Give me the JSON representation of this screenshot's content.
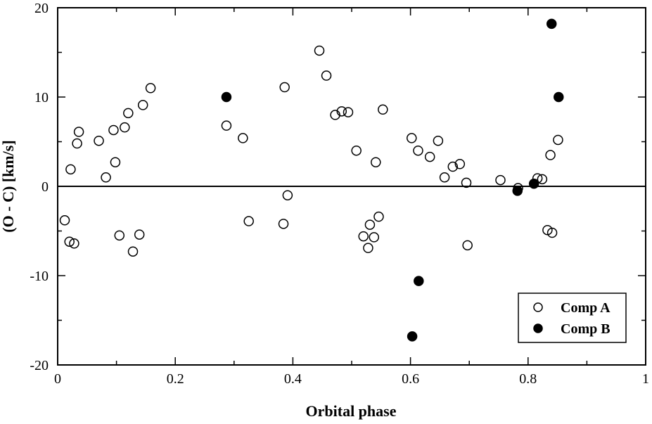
{
  "chart_data": {
    "type": "scatter",
    "xlabel": "Orbital phase",
    "ylabel": "(O - C) [km/s]",
    "xlim": [
      0,
      1
    ],
    "ylim": [
      -20,
      20
    ],
    "xticks": [
      "0",
      "0.2",
      "0.4",
      "0.6",
      "0.8",
      "1"
    ],
    "yticks": [
      "-20",
      "-10",
      "0",
      "10",
      "20"
    ],
    "zero_line": 0,
    "legend_position": "bottom-right",
    "series": [
      {
        "name": "Comp A",
        "marker": "open-circle",
        "points": [
          [
            0.012,
            -3.8
          ],
          [
            0.02,
            -6.2
          ],
          [
            0.022,
            1.9
          ],
          [
            0.028,
            -6.4
          ],
          [
            0.033,
            4.8
          ],
          [
            0.036,
            6.1
          ],
          [
            0.07,
            5.1
          ],
          [
            0.082,
            1.0
          ],
          [
            0.095,
            6.3
          ],
          [
            0.098,
            2.7
          ],
          [
            0.105,
            -5.5
          ],
          [
            0.114,
            6.6
          ],
          [
            0.12,
            8.2
          ],
          [
            0.128,
            -7.3
          ],
          [
            0.139,
            -5.4
          ],
          [
            0.145,
            9.1
          ],
          [
            0.158,
            11.0
          ],
          [
            0.287,
            6.8
          ],
          [
            0.315,
            5.4
          ],
          [
            0.325,
            -3.9
          ],
          [
            0.384,
            -4.2
          ],
          [
            0.386,
            11.1
          ],
          [
            0.391,
            -1.0
          ],
          [
            0.445,
            15.2
          ],
          [
            0.457,
            12.4
          ],
          [
            0.472,
            8.0
          ],
          [
            0.483,
            8.4
          ],
          [
            0.494,
            8.3
          ],
          [
            0.508,
            4.0
          ],
          [
            0.52,
            -5.6
          ],
          [
            0.528,
            -6.9
          ],
          [
            0.531,
            -4.3
          ],
          [
            0.538,
            -5.7
          ],
          [
            0.541,
            2.7
          ],
          [
            0.546,
            -3.4
          ],
          [
            0.553,
            8.6
          ],
          [
            0.602,
            5.4
          ],
          [
            0.613,
            4.0
          ],
          [
            0.633,
            3.3
          ],
          [
            0.647,
            5.1
          ],
          [
            0.658,
            1.0
          ],
          [
            0.672,
            2.2
          ],
          [
            0.684,
            2.5
          ],
          [
            0.695,
            0.4
          ],
          [
            0.697,
            -6.6
          ],
          [
            0.753,
            0.7
          ],
          [
            0.783,
            -0.2
          ],
          [
            0.816,
            0.9
          ],
          [
            0.824,
            0.8
          ],
          [
            0.833,
            -4.9
          ],
          [
            0.838,
            3.5
          ],
          [
            0.841,
            -5.2
          ],
          [
            0.851,
            5.2
          ]
        ]
      },
      {
        "name": "Comp B",
        "marker": "filled-circle",
        "points": [
          [
            0.287,
            10.0
          ],
          [
            0.603,
            -16.8
          ],
          [
            0.614,
            -10.6
          ],
          [
            0.782,
            -0.5
          ],
          [
            0.81,
            0.3
          ],
          [
            0.84,
            18.2
          ],
          [
            0.852,
            10.0
          ]
        ]
      }
    ]
  }
}
